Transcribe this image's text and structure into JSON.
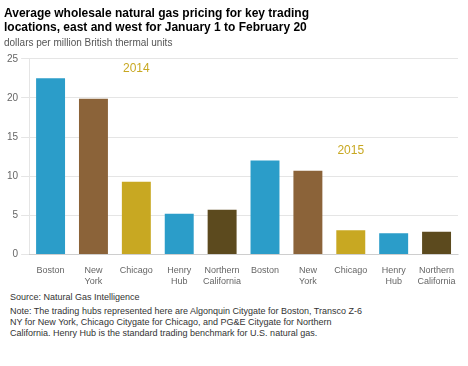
{
  "chart_data": {
    "type": "bar",
    "title": [
      "Average wholesale natural gas pricing for key trading",
      "locations, east and west for January 1 to February 20"
    ],
    "subtitle": "dollars per million British thermal units",
    "categories": [
      "Boston",
      "New\nYork",
      "Chicago",
      "Henry\nHub",
      "Northern\nCalifornia",
      "Boston",
      "New\nYork",
      "Chicago",
      "Henry\nHub",
      "Northern\nCalifornia"
    ],
    "values": [
      22.5,
      19.9,
      9.3,
      5.2,
      5.7,
      12.0,
      10.7,
      3.1,
      2.7,
      2.9
    ],
    "colors": [
      "#2b9dc9",
      "#8B6339",
      "#c8a822",
      "#2b9dc9",
      "#5c4a1e",
      "#2b9dc9",
      "#8B6339",
      "#c8a822",
      "#2b9dc9",
      "#5c4a1e"
    ],
    "annotations": [
      {
        "text": "2014",
        "color": "#c8a822"
      },
      {
        "text": "2015",
        "color": "#c8a822"
      }
    ],
    "source": "Source: Natural Gas Intelligence",
    "note": "Note: The trading hubs represented here are Algonquin Citygate for Boston, Transco Z-6\nNY for New York, Chicago Citygate for Chicago, and PG&E Citygate for Northern\nCalifornia. Henry Hub is the standard trading benchmark for U.S. natural gas.",
    "ylim": [
      0,
      25
    ],
    "yticks": [
      0,
      5,
      10,
      15,
      20,
      25
    ],
    "grid": true
  }
}
